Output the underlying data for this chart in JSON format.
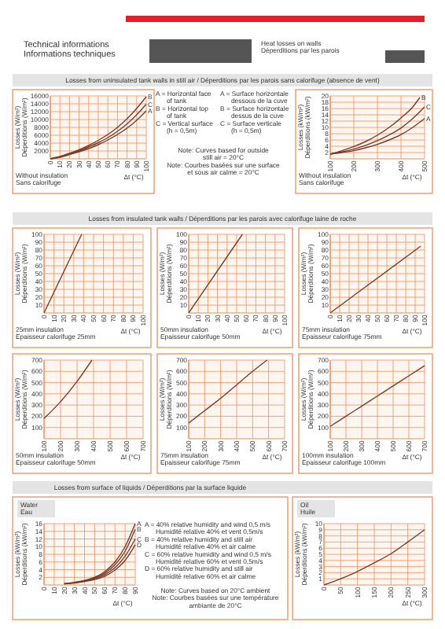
{
  "chart_data": [
    {
      "type": "line",
      "title": "Losses from uninsulated tank walls in still air  /  Déperditions par les parois sans calorifuge (absence de vent)",
      "xlabel": "Δt (°C)",
      "ylabel": "Losses (W/m²)\nDéperditions (W/m²)",
      "annotations": [
        "Technical informations\nInformations techniques",
        "Heat losses on walls\nDéperditions par les parois",
        "Without insulation\nSans calorifuge",
        "A = Horizontal face\n      of tank\nB = Horizontal top\n      of tank\nC = Vertical surface\n      (h = 0,5m)"
      ],
      "x": [
        0,
        10,
        20,
        30,
        40,
        50,
        60,
        70,
        80,
        90,
        100
      ],
      "xlim": [
        0,
        100
      ],
      "ylim": [
        0,
        16000
      ],
      "xticks": [
        0,
        10,
        20,
        30,
        40,
        50,
        60,
        70,
        80,
        90,
        100
      ],
      "yticks": [
        2000,
        4000,
        6000,
        8000,
        10000,
        12000,
        14000,
        16000
      ],
      "grid": true,
      "series": [
        {
          "name": "B",
          "color": "#7a3b2a",
          "values": [
            0,
            600,
            1400,
            2300,
            3400,
            4700,
            6200,
            8000,
            10200,
            12800,
            15800
          ]
        },
        {
          "name": "C",
          "color": "#7a3b2a",
          "values": [
            0,
            500,
            1200,
            2000,
            3000,
            4100,
            5400,
            7000,
            8900,
            11200,
            13900
          ]
        },
        {
          "name": "A",
          "color": "#7a3b2a",
          "values": [
            0,
            400,
            1100,
            1800,
            2600,
            3600,
            4800,
            6200,
            7800,
            9800,
            12200
          ]
        }
      ]
    },
    {
      "type": "line",
      "xlabel": "Δt (°C)",
      "ylabel": "Losses (kW/m²)\nDéperditions (kW/m²)",
      "annotations": [
        "A = Surface horizontale\n      dessous de la cuve\nB = Surface horizontale\n      dessus de la cuve\nC = Surface verticale\n      (h = 0,5m)",
        "Note: Curves based for outside\nstill air = 20°C\nNote: Courbes basées sur une surface\net sous air calme = 20°C",
        "Without insulation\nSans calorifuge"
      ],
      "xlim": [
        100,
        500
      ],
      "ylim": [
        0,
        20
      ],
      "xticks": [
        100,
        200,
        300,
        400,
        500
      ],
      "yticks": [
        2,
        4,
        6,
        8,
        10,
        12,
        14,
        16,
        18,
        20
      ],
      "grid": true,
      "series": [
        {
          "name": "B",
          "color": "#7a3b2a",
          "x": [
            100,
            150,
            200,
            250,
            300,
            350,
            400,
            450,
            480
          ],
          "values": [
            1.5,
            2.6,
            3.9,
            5.5,
            7.5,
            10,
            13,
            16.5,
            19.5
          ]
        },
        {
          "name": "C",
          "color": "#7a3b2a",
          "x": [
            100,
            150,
            200,
            250,
            300,
            350,
            400,
            450,
            500
          ],
          "values": [
            1.5,
            2.2,
            3.1,
            4.3,
            5.8,
            7.6,
            9.8,
            12.8,
            16.5
          ]
        },
        {
          "name": "A",
          "color": "#7a3b2a",
          "x": [
            100,
            150,
            200,
            250,
            300,
            350,
            400,
            450,
            500
          ],
          "values": [
            1.5,
            2,
            2.6,
            3.5,
            4.6,
            6,
            7.7,
            10,
            12.8
          ]
        }
      ]
    },
    {
      "type": "line",
      "title": "Losses from insulated tank walls  /  Déperditions par les parois avec calorifuge laine de roche",
      "xlabel": "Δt (°C)",
      "ylabel": "Losses (W/m²)\nDéperditions (W/m²)",
      "annotations": [
        "25mm insulation\nEpaisseur calorifuge 25mm"
      ],
      "xlim": [
        0,
        100
      ],
      "ylim": [
        0,
        100
      ],
      "xticks": [
        0,
        10,
        20,
        30,
        40,
        50,
        60,
        70,
        80,
        90,
        100
      ],
      "yticks": [
        10,
        20,
        30,
        40,
        50,
        60,
        70,
        80,
        90,
        100
      ],
      "grid": true,
      "series": [
        {
          "color": "#7a3b2a",
          "x": [
            0,
            38
          ],
          "values": [
            0,
            100
          ]
        }
      ]
    },
    {
      "type": "line",
      "xlabel": "Δt (°C)",
      "ylabel": "Losses (W/m²)\nDéperditions (W/m²)",
      "annotations": [
        "50mm insulation\nEpaisseur calorifuge 50mm"
      ],
      "xlim": [
        0,
        100
      ],
      "ylim": [
        0,
        100
      ],
      "xticks": [
        0,
        10,
        20,
        30,
        40,
        50,
        60,
        70,
        80,
        90,
        100
      ],
      "yticks": [
        10,
        20,
        30,
        40,
        50,
        60,
        70,
        80,
        90,
        100
      ],
      "grid": true,
      "series": [
        {
          "color": "#7a3b2a",
          "x": [
            0,
            56
          ],
          "values": [
            0,
            100
          ]
        }
      ]
    },
    {
      "type": "line",
      "xlabel": "Δt (°C)",
      "ylabel": "Losses (W/m²)\nDéperditions (W/m²)",
      "annotations": [
        "75mm insulation\nEpaisseur calorifuge 75mm"
      ],
      "xlim": [
        0,
        100
      ],
      "ylim": [
        0,
        100
      ],
      "xticks": [
        0,
        10,
        20,
        30,
        40,
        50,
        60,
        70,
        80,
        90,
        100
      ],
      "yticks": [
        10,
        20,
        30,
        40,
        50,
        60,
        70,
        80,
        90,
        100
      ],
      "grid": true,
      "series": [
        {
          "color": "#7a3b2a",
          "x": [
            0,
            96
          ],
          "values": [
            0,
            85
          ]
        }
      ]
    },
    {
      "type": "line",
      "xlabel": "Δt (°C)",
      "ylabel": "Losses (W/m²)\nDéperditions (W/m²)",
      "annotations": [
        "50mm insulation\nEpaisseur calorifuge 50mm"
      ],
      "xlim": [
        100,
        700
      ],
      "ylim": [
        0,
        700
      ],
      "xticks": [
        100,
        200,
        300,
        400,
        500,
        600,
        700
      ],
      "yticks": [
        100,
        200,
        300,
        400,
        500,
        600,
        700
      ],
      "grid": true,
      "series": [
        {
          "color": "#7a3b2a",
          "x": [
            100,
            200,
            300,
            390
          ],
          "values": [
            180,
            330,
            510,
            700
          ]
        }
      ]
    },
    {
      "type": "line",
      "xlabel": "Δt (°C)",
      "ylabel": "Losses (W/m²)\nDéperditions (W/m²)",
      "annotations": [
        "75mm insulation\nEpaisseur calorifuge 75mm"
      ],
      "xlim": [
        100,
        700
      ],
      "ylim": [
        0,
        700
      ],
      "xticks": [
        100,
        200,
        300,
        400,
        500,
        600,
        700
      ],
      "yticks": [
        100,
        200,
        300,
        400,
        500,
        600,
        700
      ],
      "grid": true,
      "series": [
        {
          "color": "#7a3b2a",
          "x": [
            100,
            200,
            300,
            400,
            500,
            590
          ],
          "values": [
            140,
            250,
            360,
            480,
            600,
            700
          ]
        }
      ]
    },
    {
      "type": "line",
      "xlabel": "Δt (°C)",
      "ylabel": "Losses (W/m²)\nDéperditions (W/m²)",
      "annotations": [
        "100mm insulation\nEpaisseur calorifuge 100mm"
      ],
      "xlim": [
        100,
        700
      ],
      "ylim": [
        0,
        700
      ],
      "xticks": [
        100,
        200,
        300,
        400,
        500,
        600,
        700
      ],
      "yticks": [
        100,
        200,
        300,
        400,
        500,
        600,
        700
      ],
      "grid": true,
      "series": [
        {
          "color": "#7a3b2a",
          "x": [
            100,
            200,
            300,
            400,
            500,
            600,
            700
          ],
          "values": [
            110,
            200,
            290,
            380,
            470,
            560,
            650
          ]
        }
      ]
    },
    {
      "type": "line",
      "title": "Losses from surface of liquids  /  Déperditions par la surface liquide",
      "subtitle": "Water\nEau",
      "xlabel": "Δt (°C)",
      "ylabel": "Losses (kW/m²)\nDéperditions (kW/m²)",
      "annotations": [
        "A = 40% relative humidity and wind 0,5 m/s\n      Humidité relative 40% et vent 0,5m/s\nB = 40% relative humidity and still air\n      Humidité relative 40% et air calme\nC = 60% relative humidity and wind 0,5 m/s\n      Humidité relative 60% et vent 0,5m/s\nD = 60% relative humidity and still air\n      Humidité relative 60% et air calme",
        "Note: Curves based on 20°C ambient\nNote: Courbes basées sur une température\nambiante de 20°C"
      ],
      "x": [
        20,
        30,
        40,
        50,
        60,
        70,
        80,
        90
      ],
      "xlim": [
        0,
        90
      ],
      "ylim": [
        0,
        16
      ],
      "xticks": [
        0,
        10,
        20,
        30,
        40,
        50,
        60,
        70,
        80,
        90
      ],
      "yticks": [
        2,
        4,
        6,
        8,
        10,
        12,
        14,
        16
      ],
      "grid": true,
      "series": [
        {
          "name": "A",
          "color": "#7a3b2a",
          "values": [
            0.3,
            0.7,
            1.2,
            2,
            3.5,
            6,
            10,
            16
          ]
        },
        {
          "name": "B",
          "color": "#7a3b2a",
          "values": [
            0.3,
            0.6,
            1.1,
            1.8,
            3.1,
            5.3,
            8.8,
            14.5
          ]
        },
        {
          "name": "C",
          "color": "#7a3b2a",
          "values": [
            0.3,
            0.6,
            1,
            1.6,
            2.7,
            4.5,
            7.5,
            12
          ]
        },
        {
          "name": "D",
          "color": "#7a3b2a",
          "values": [
            0.3,
            0.5,
            0.9,
            1.4,
            2.3,
            3.9,
            6.4,
            10.5
          ]
        }
      ]
    },
    {
      "type": "line",
      "subtitle": "Oil\nHuile",
      "xlabel": "Δt (°C)",
      "ylabel": "Losses (kW/m²)\nDéperditions (kW/m²)",
      "x": [
        0,
        50,
        100,
        150,
        200,
        250,
        300
      ],
      "xlim": [
        0,
        300
      ],
      "ylim": [
        0,
        10
      ],
      "xticks": [
        0,
        50,
        100,
        150,
        200,
        250,
        300
      ],
      "yticks": [
        1,
        2,
        3,
        4,
        5,
        6,
        7,
        8,
        9,
        10
      ],
      "grid": true,
      "series": [
        {
          "color": "#7a3b2a",
          "values": [
            0,
            1,
            2.2,
            3.6,
            5.1,
            7,
            9
          ]
        }
      ]
    }
  ]
}
